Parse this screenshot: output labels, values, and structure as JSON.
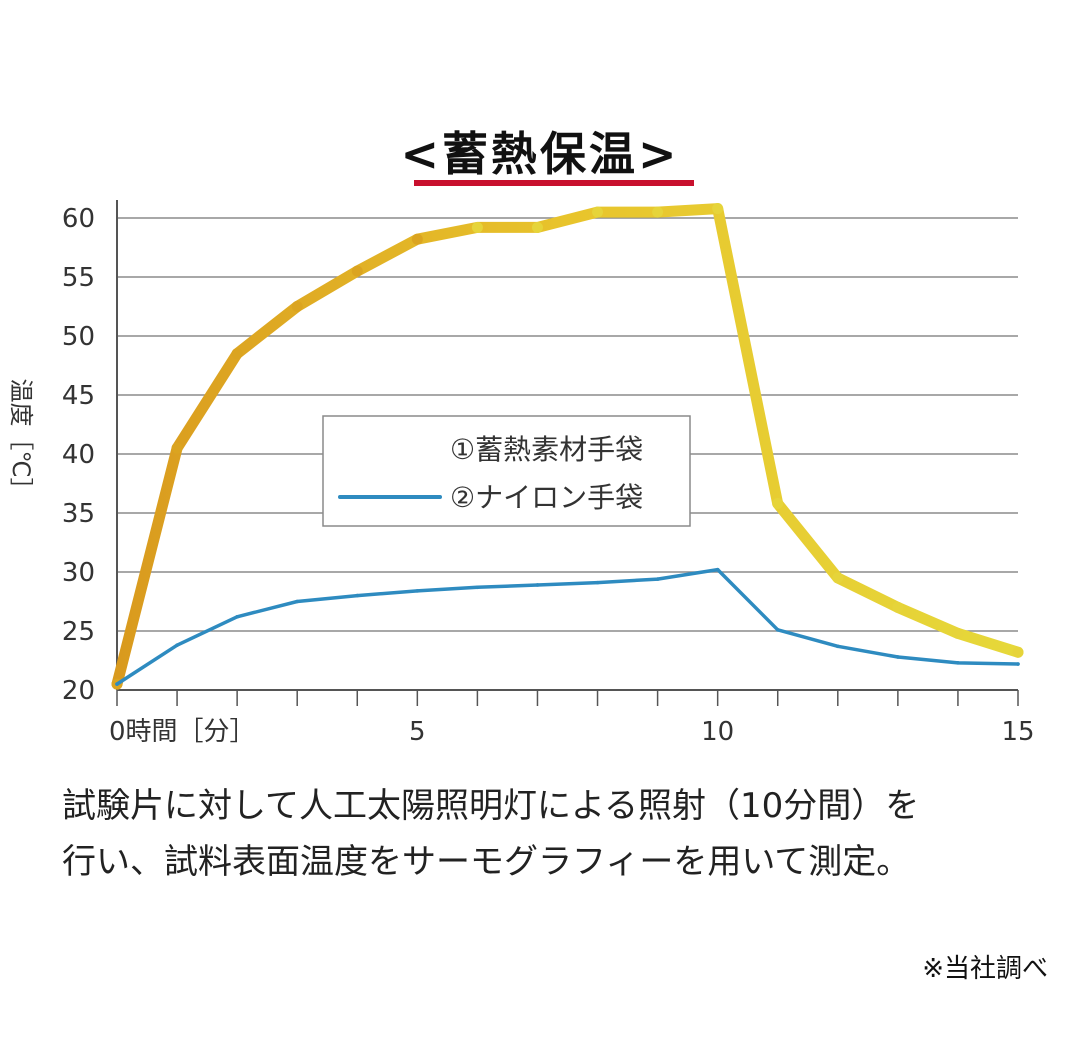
{
  "chart_data": {
    "type": "line",
    "title": "<蓄熱保温>",
    "ylabel": "温度［℃］",
    "xlabel_origin": "0時間［分］",
    "xlim": [
      0,
      15
    ],
    "ylim": [
      20,
      60
    ],
    "y_ticks": [
      20,
      25,
      30,
      35,
      40,
      45,
      50,
      55,
      60
    ],
    "x_tick_labels": [
      {
        "x": 5,
        "label": "5"
      },
      {
        "x": 10,
        "label": "10"
      },
      {
        "x": 15,
        "label": "15"
      }
    ],
    "grid": true,
    "legend_position": "center",
    "series": [
      {
        "name": "①蓄熱素材手袋",
        "color": "#e8c42c",
        "color_start": "#d99a1e",
        "x": [
          0,
          1,
          2,
          3,
          4,
          5,
          6,
          7,
          8,
          9,
          10,
          11,
          12,
          13,
          14,
          15
        ],
        "y": [
          20.5,
          40.5,
          48.5,
          52.5,
          55.5,
          58.2,
          59.2,
          59.2,
          60.5,
          60.5,
          60.8,
          35.8,
          29.5,
          27,
          24.8,
          23.2
        ]
      },
      {
        "name": "②ナイロン手袋",
        "color": "#2e8bc0",
        "x": [
          0,
          1,
          2,
          3,
          4,
          5,
          6,
          7,
          8,
          9,
          10,
          11,
          12,
          13,
          14,
          15
        ],
        "y": [
          20.5,
          23.8,
          26.2,
          27.5,
          28,
          28.4,
          28.7,
          28.9,
          29.1,
          29.4,
          30.2,
          25.1,
          23.7,
          22.8,
          22.3,
          22.2
        ]
      }
    ]
  },
  "note": {
    "line1": "試験片に対して人工太陽照明灯による照射（10分間）を",
    "line2": "行い、試料表面温度をサーモグラフィーを用いて測定。"
  },
  "source": "※当社調べ"
}
